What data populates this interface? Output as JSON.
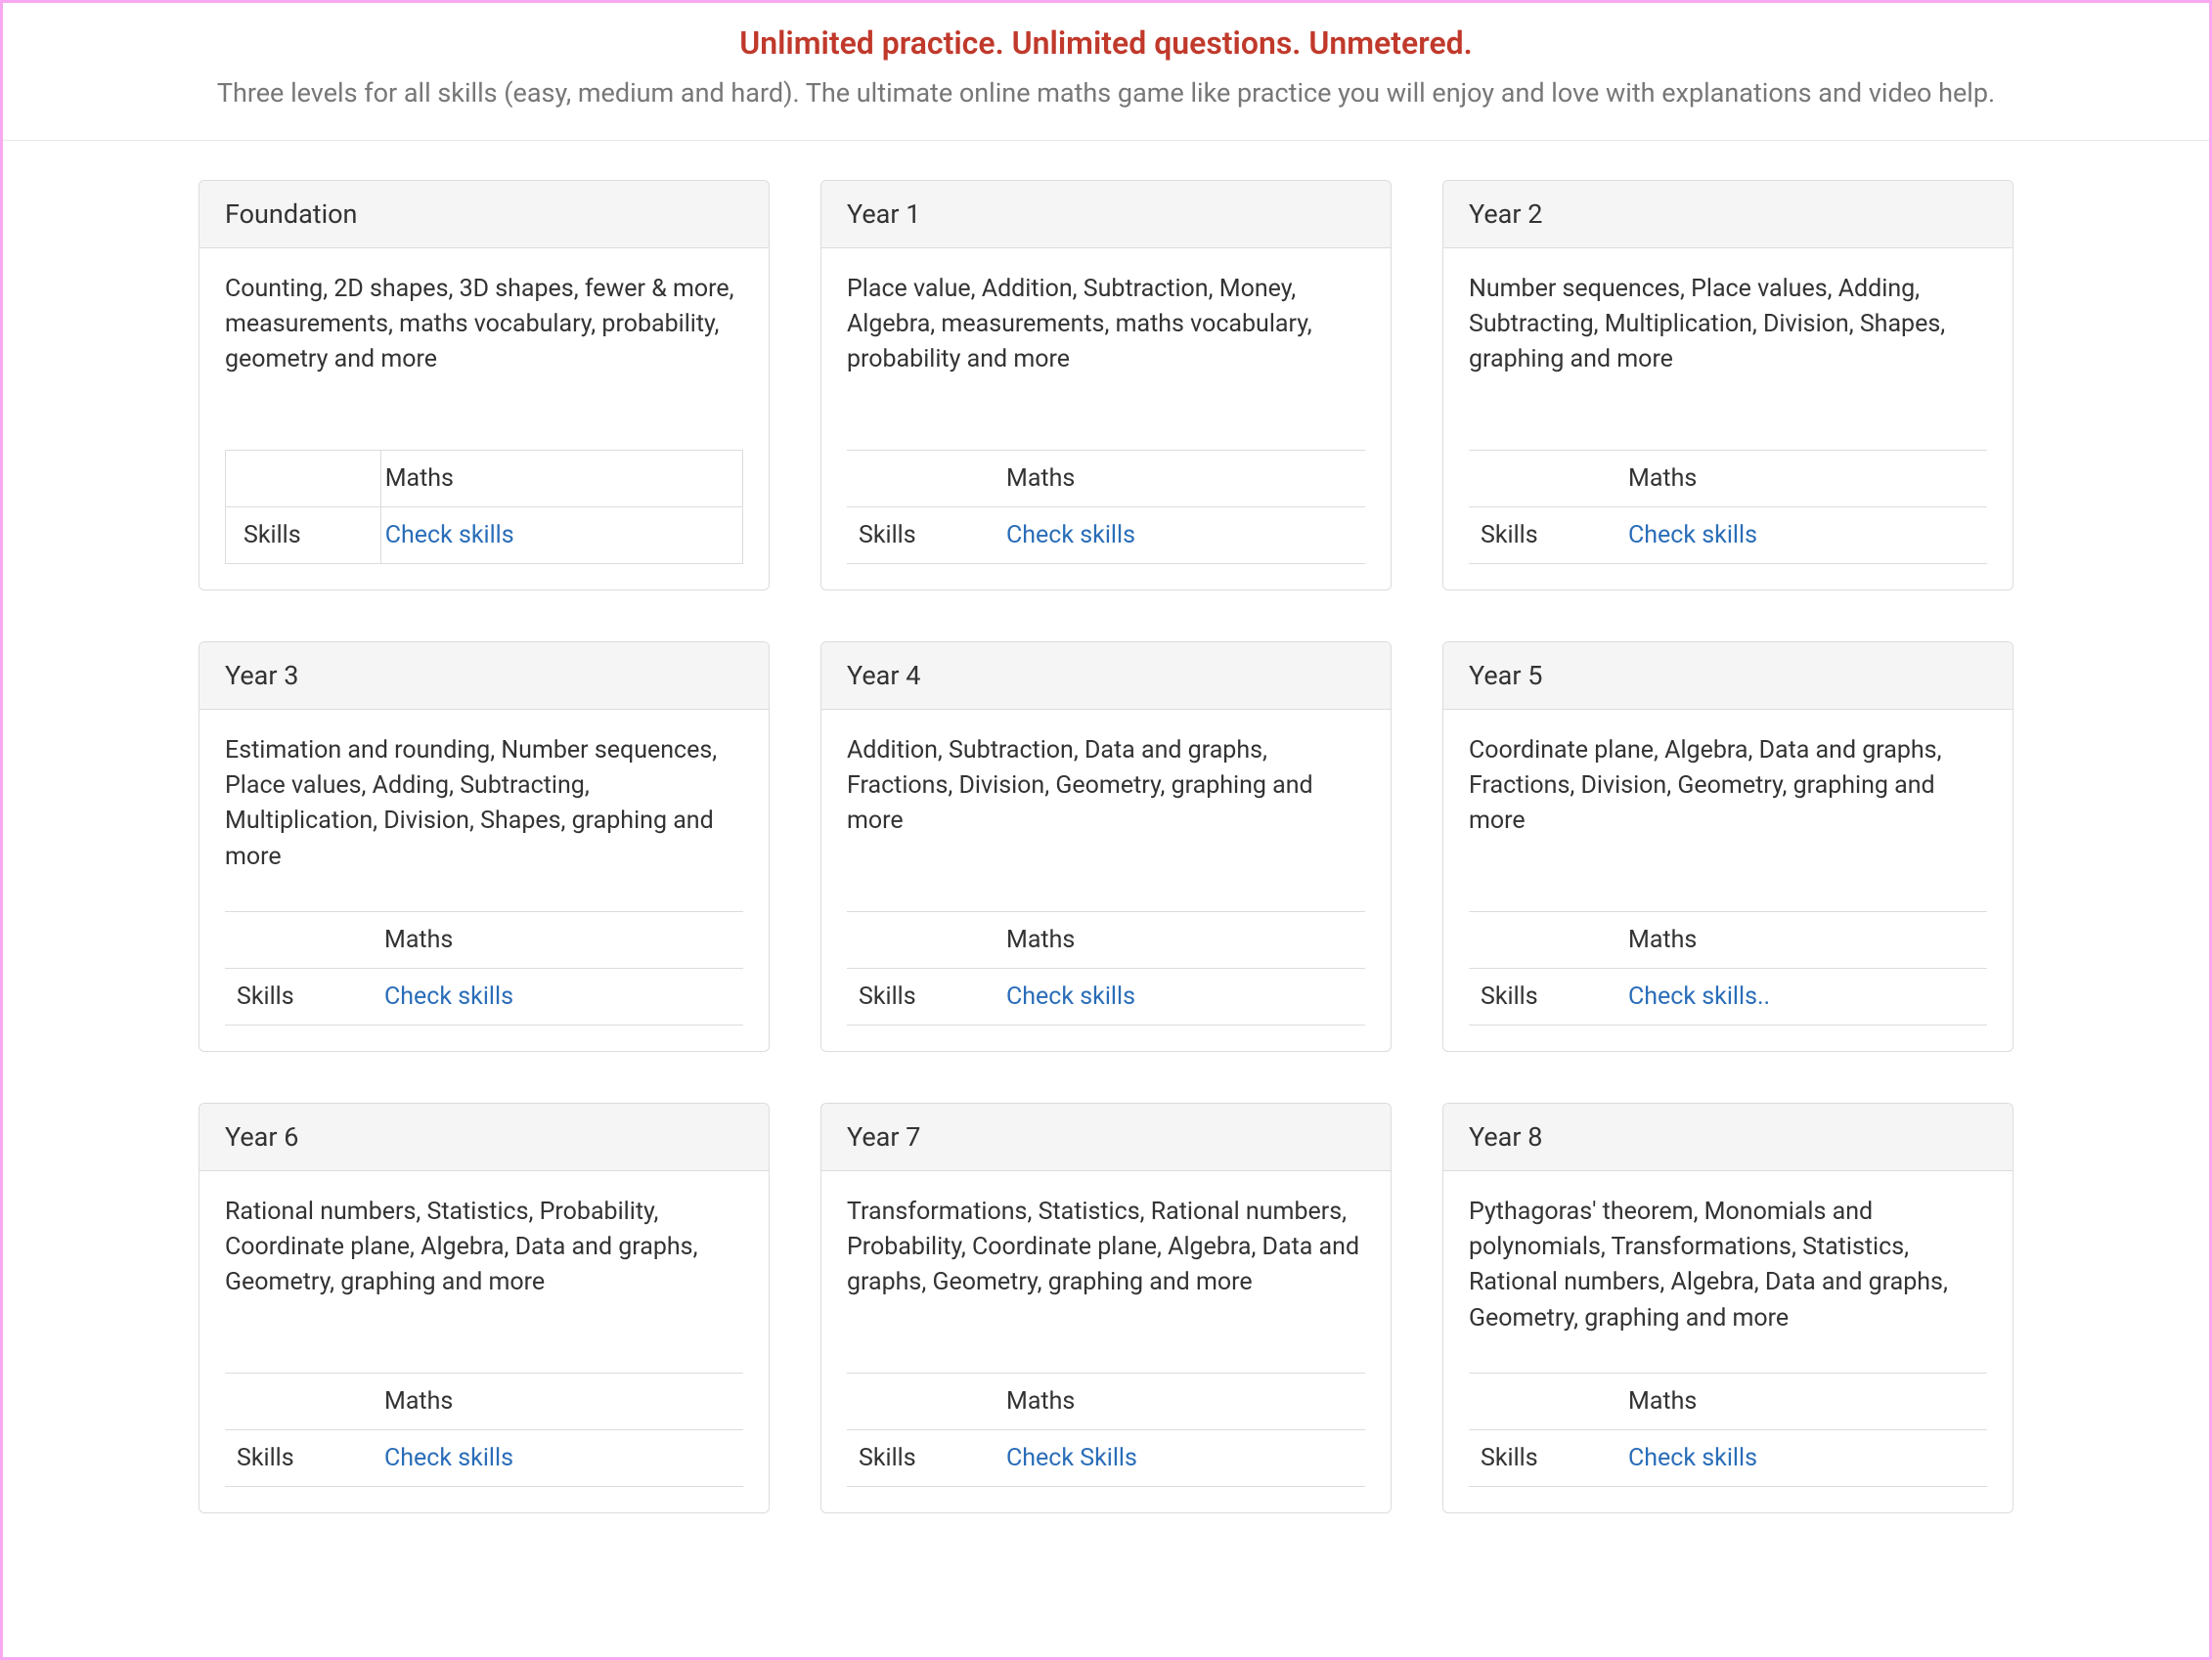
{
  "header": {
    "title": "Unlimited practice. Unlimited questions. Unmetered.",
    "subtitle": "Three levels for all skills (easy, medium and hard). The ultimate online maths game like practice you will enjoy and love with explanations and video help."
  },
  "table_labels": {
    "column_header": "Maths",
    "row_label": "Skills"
  },
  "cards": [
    {
      "title": "Foundation",
      "description": "Counting, 2D shapes, 3D shapes, fewer & more, measurements, maths vocabulary, probability, geometry and more",
      "link_text": "Check skills",
      "bordered": true
    },
    {
      "title": "Year 1",
      "description": "Place value, Addition, Subtraction, Money, Algebra, measurements, maths vocabulary, probability and more",
      "link_text": "Check skills",
      "bordered": false
    },
    {
      "title": "Year 2",
      "description": "Number sequences, Place values, Adding, Subtracting, Multiplication, Division, Shapes, graphing and more",
      "link_text": "Check skills",
      "bordered": false
    },
    {
      "title": "Year 3",
      "description": "Estimation and rounding, Number sequences, Place values, Adding, Subtracting, Multiplication, Division, Shapes, graphing and more",
      "link_text": "Check skills",
      "bordered": false
    },
    {
      "title": "Year 4",
      "description": "Addition, Subtraction, Data and graphs, Fractions, Division, Geometry, graphing and more",
      "link_text": "Check skills",
      "bordered": false
    },
    {
      "title": "Year 5",
      "description": "Coordinate plane, Algebra, Data and graphs, Fractions, Division, Geometry, graphing and more",
      "link_text": "Check skills..",
      "bordered": false
    },
    {
      "title": "Year 6",
      "description": "Rational numbers, Statistics, Probability, Coordinate plane, Algebra, Data and graphs, Geometry, graphing and more",
      "link_text": "Check skills",
      "bordered": false
    },
    {
      "title": "Year 7",
      "description": "Transformations, Statistics, Rational numbers, Probability, Coordinate plane, Algebra, Data and graphs, Geometry, graphing and more",
      "link_text": "Check Skills",
      "bordered": false
    },
    {
      "title": "Year 8",
      "description": "Pythagoras' theorem, Monomials and polynomials, Transformations, Statistics, Rational numbers, Algebra, Data and graphs, Geometry, graphing and more",
      "link_text": "Check skills",
      "bordered": false
    }
  ],
  "colors": {
    "title_color": "#c0392b",
    "subtitle_color": "#777777",
    "text_color": "#333333",
    "link_color": "#2a6db8",
    "border_color": "#dcdcdc",
    "card_header_bg": "#f5f5f5",
    "page_border": "#f8a8f0"
  }
}
